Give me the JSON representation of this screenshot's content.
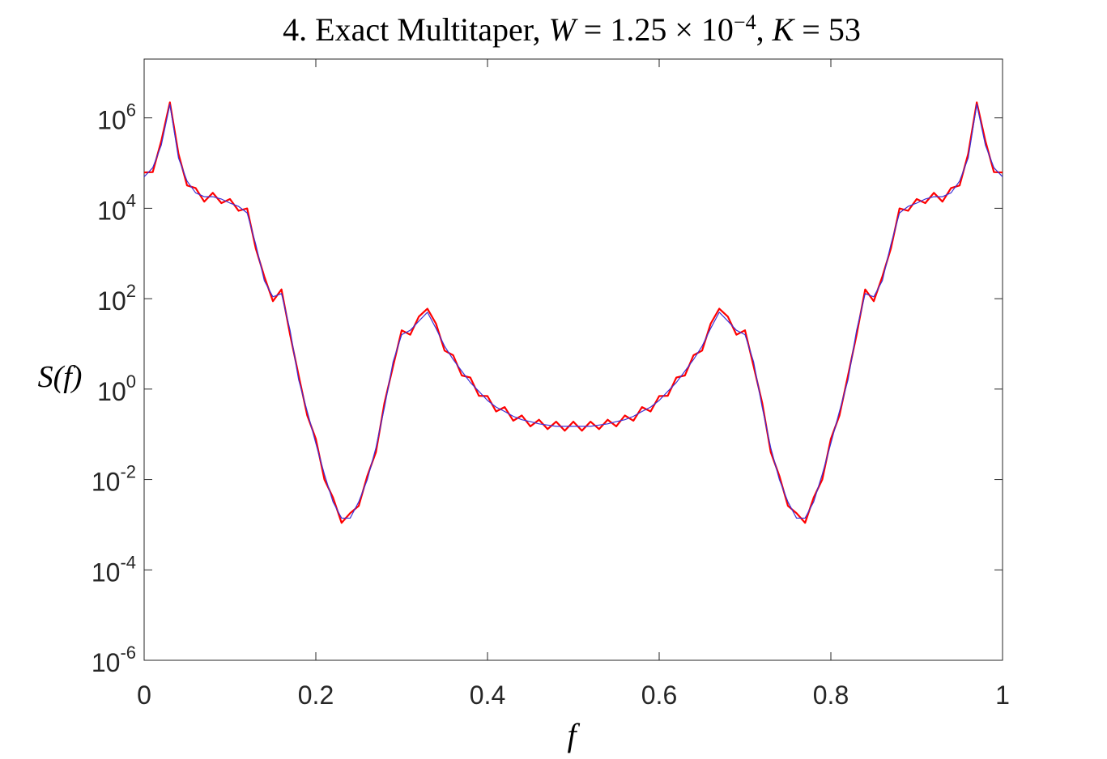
{
  "chart_data": {
    "type": "line",
    "title_parts": [
      {
        "text": "4. Exact Multitaper, ",
        "style": "normal"
      },
      {
        "text": "W",
        "style": "italic"
      },
      {
        "text": " = 1.25 × 10",
        "style": "normal"
      },
      {
        "text": "−4",
        "style": "superscript"
      },
      {
        "text": ", ",
        "style": "normal"
      },
      {
        "text": "K",
        "style": "italic"
      },
      {
        "text": " = 53",
        "style": "normal"
      }
    ],
    "xlabel": "f",
    "ylabel": "S(f)",
    "log_y": true,
    "xlim": [
      0,
      1
    ],
    "xticks": [
      0,
      0.2,
      0.4,
      0.6,
      0.8,
      1
    ],
    "ylim": [
      1e-06,
      20000000.0
    ],
    "yticks": [
      {
        "value": 1e-06,
        "label": "10",
        "exponent": "-6"
      },
      {
        "value": 0.0001,
        "label": "10",
        "exponent": "-4"
      },
      {
        "value": 0.01,
        "label": "10",
        "exponent": "-2"
      },
      {
        "value": 1,
        "label": "10",
        "exponent": "0"
      },
      {
        "value": 100.0,
        "label": "10",
        "exponent": "2"
      },
      {
        "value": 10000.0,
        "label": "10",
        "exponent": "4"
      },
      {
        "value": 1000000.0,
        "label": "10",
        "exponent": "6"
      }
    ],
    "x": [
      0,
      0.01,
      0.02,
      0.03,
      0.04,
      0.05,
      0.06,
      0.07,
      0.08,
      0.09,
      0.1,
      0.11,
      0.12,
      0.13,
      0.14,
      0.15,
      0.16,
      0.17,
      0.18,
      0.19,
      0.2,
      0.21,
      0.22,
      0.23,
      0.24,
      0.25,
      0.26,
      0.27,
      0.28,
      0.29,
      0.3,
      0.31,
      0.32,
      0.33,
      0.34,
      0.35,
      0.36,
      0.37,
      0.38,
      0.39,
      0.4,
      0.41,
      0.42,
      0.43,
      0.44,
      0.45,
      0.46,
      0.47,
      0.48,
      0.49,
      0.5,
      0.51,
      0.52,
      0.53,
      0.54,
      0.55,
      0.56,
      0.57,
      0.58,
      0.59,
      0.6,
      0.61,
      0.62,
      0.63,
      0.64,
      0.65,
      0.66,
      0.67,
      0.68,
      0.69,
      0.7,
      0.71,
      0.72,
      0.73,
      0.74,
      0.75,
      0.76,
      0.77,
      0.78,
      0.79,
      0.8,
      0.81,
      0.82,
      0.83,
      0.84,
      0.85,
      0.86,
      0.87,
      0.88,
      0.89,
      0.9,
      0.91,
      0.92,
      0.93,
      0.94,
      0.95,
      0.96,
      0.97,
      0.98,
      0.99,
      1
    ],
    "series": [
      {
        "color": "#ff0000",
        "width": 2.2,
        "values": [
          62000.0,
          63000.0,
          310000.0,
          2200000.0,
          160000.0,
          32000.0,
          28000.0,
          14000.0,
          22000.0,
          13000.0,
          16000.0,
          8800.0,
          9900.0,
          1300.0,
          310,
          88,
          160,
          16,
          2,
          0.26,
          0.079,
          0.01,
          0.004,
          0.0011,
          0.0018,
          0.0026,
          0.012,
          0.04,
          0.5,
          3.2,
          20,
          16,
          40,
          60,
          28,
          7.1,
          5.6,
          2,
          1.8,
          0.71,
          0.7,
          0.32,
          0.4,
          0.2,
          0.26,
          0.15,
          0.21,
          0.13,
          0.19,
          0.12,
          0.19,
          0.12,
          0.19,
          0.13,
          0.21,
          0.15,
          0.26,
          0.2,
          0.4,
          0.32,
          0.7,
          0.71,
          1.8,
          2,
          5.6,
          7.1,
          28,
          60,
          40,
          16,
          20,
          3.2,
          0.5,
          0.04,
          0.012,
          0.0026,
          0.0018,
          0.0011,
          0.004,
          0.01,
          0.079,
          0.26,
          2,
          16,
          160,
          88,
          310,
          1300.0,
          9900.0,
          8800.0,
          16000.0,
          13000.0,
          22000.0,
          14000.0,
          28000.0,
          32000.0,
          160000.0,
          2200000.0,
          310000.0,
          63000.0,
          62000.0
        ]
      },
      {
        "color": "#3b2fd6",
        "width": 1.2,
        "values": [
          50000.0,
          79000.0,
          250000.0,
          2000000.0,
          130000.0,
          40000.0,
          22000.0,
          18000.0,
          18000.0,
          16000.0,
          13000.0,
          11000.0,
          7900.0,
          1600.0,
          250,
          110,
          130,
          20,
          1.6,
          0.32,
          0.063,
          0.013,
          0.0032,
          0.0014,
          0.0014,
          0.0032,
          0.01,
          0.05,
          0.4,
          4,
          16,
          20,
          32,
          50,
          22,
          8.9,
          4.5,
          2.5,
          1.4,
          0.89,
          0.56,
          0.4,
          0.32,
          0.25,
          0.21,
          0.19,
          0.17,
          0.16,
          0.15,
          0.15,
          0.15,
          0.15,
          0.15,
          0.16,
          0.17,
          0.19,
          0.21,
          0.25,
          0.32,
          0.4,
          0.56,
          0.89,
          1.4,
          2.5,
          4.5,
          8.9,
          22,
          50,
          32,
          20,
          16,
          4,
          0.4,
          0.05,
          0.01,
          0.0032,
          0.0014,
          0.0014,
          0.0032,
          0.013,
          0.063,
          0.32,
          1.6,
          20,
          130,
          110,
          250,
          1600.0,
          7900.0,
          11000.0,
          13000.0,
          16000.0,
          18000.0,
          18000.0,
          22000.0,
          40000.0,
          130000.0,
          2000000.0,
          250000.0,
          79000.0,
          50000.0
        ]
      }
    ]
  }
}
